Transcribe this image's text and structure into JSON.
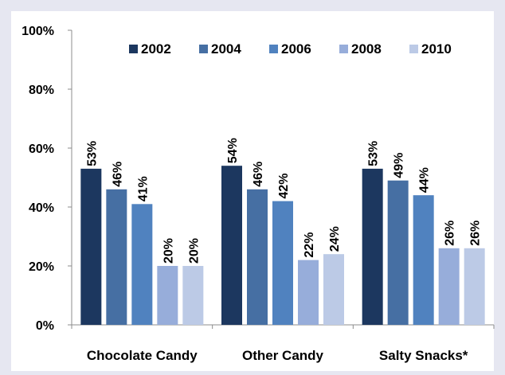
{
  "chart_data": {
    "type": "bar",
    "categories": [
      "Chocolate Candy",
      "Other Candy",
      "Salty Snacks*"
    ],
    "series": [
      {
        "name": "2002",
        "values": [
          53,
          54,
          53
        ],
        "labels": [
          "53%",
          "54%",
          "53%"
        ]
      },
      {
        "name": "2004",
        "values": [
          46,
          46,
          49
        ],
        "labels": [
          "46%",
          "46%",
          "49%"
        ]
      },
      {
        "name": "2006",
        "values": [
          41,
          42,
          44
        ],
        "labels": [
          "41%",
          "42%",
          "44%"
        ]
      },
      {
        "name": "2008",
        "values": [
          20,
          22,
          26
        ],
        "labels": [
          "20%",
          "22%",
          "26%"
        ]
      },
      {
        "name": "2010",
        "values": [
          20,
          24,
          26
        ],
        "labels": [
          "20%",
          "24%",
          "26%"
        ]
      }
    ],
    "colors": [
      "#1c375f",
      "#466fa3",
      "#5082bf",
      "#97adda",
      "#bccae6"
    ],
    "yticks": [
      0,
      20,
      40,
      60,
      80,
      100
    ],
    "ytick_labels": [
      "0%",
      "20%",
      "40%",
      "60%",
      "80%",
      "100%"
    ],
    "ylim": [
      0,
      100
    ],
    "legend_position": "top",
    "grid": false
  }
}
